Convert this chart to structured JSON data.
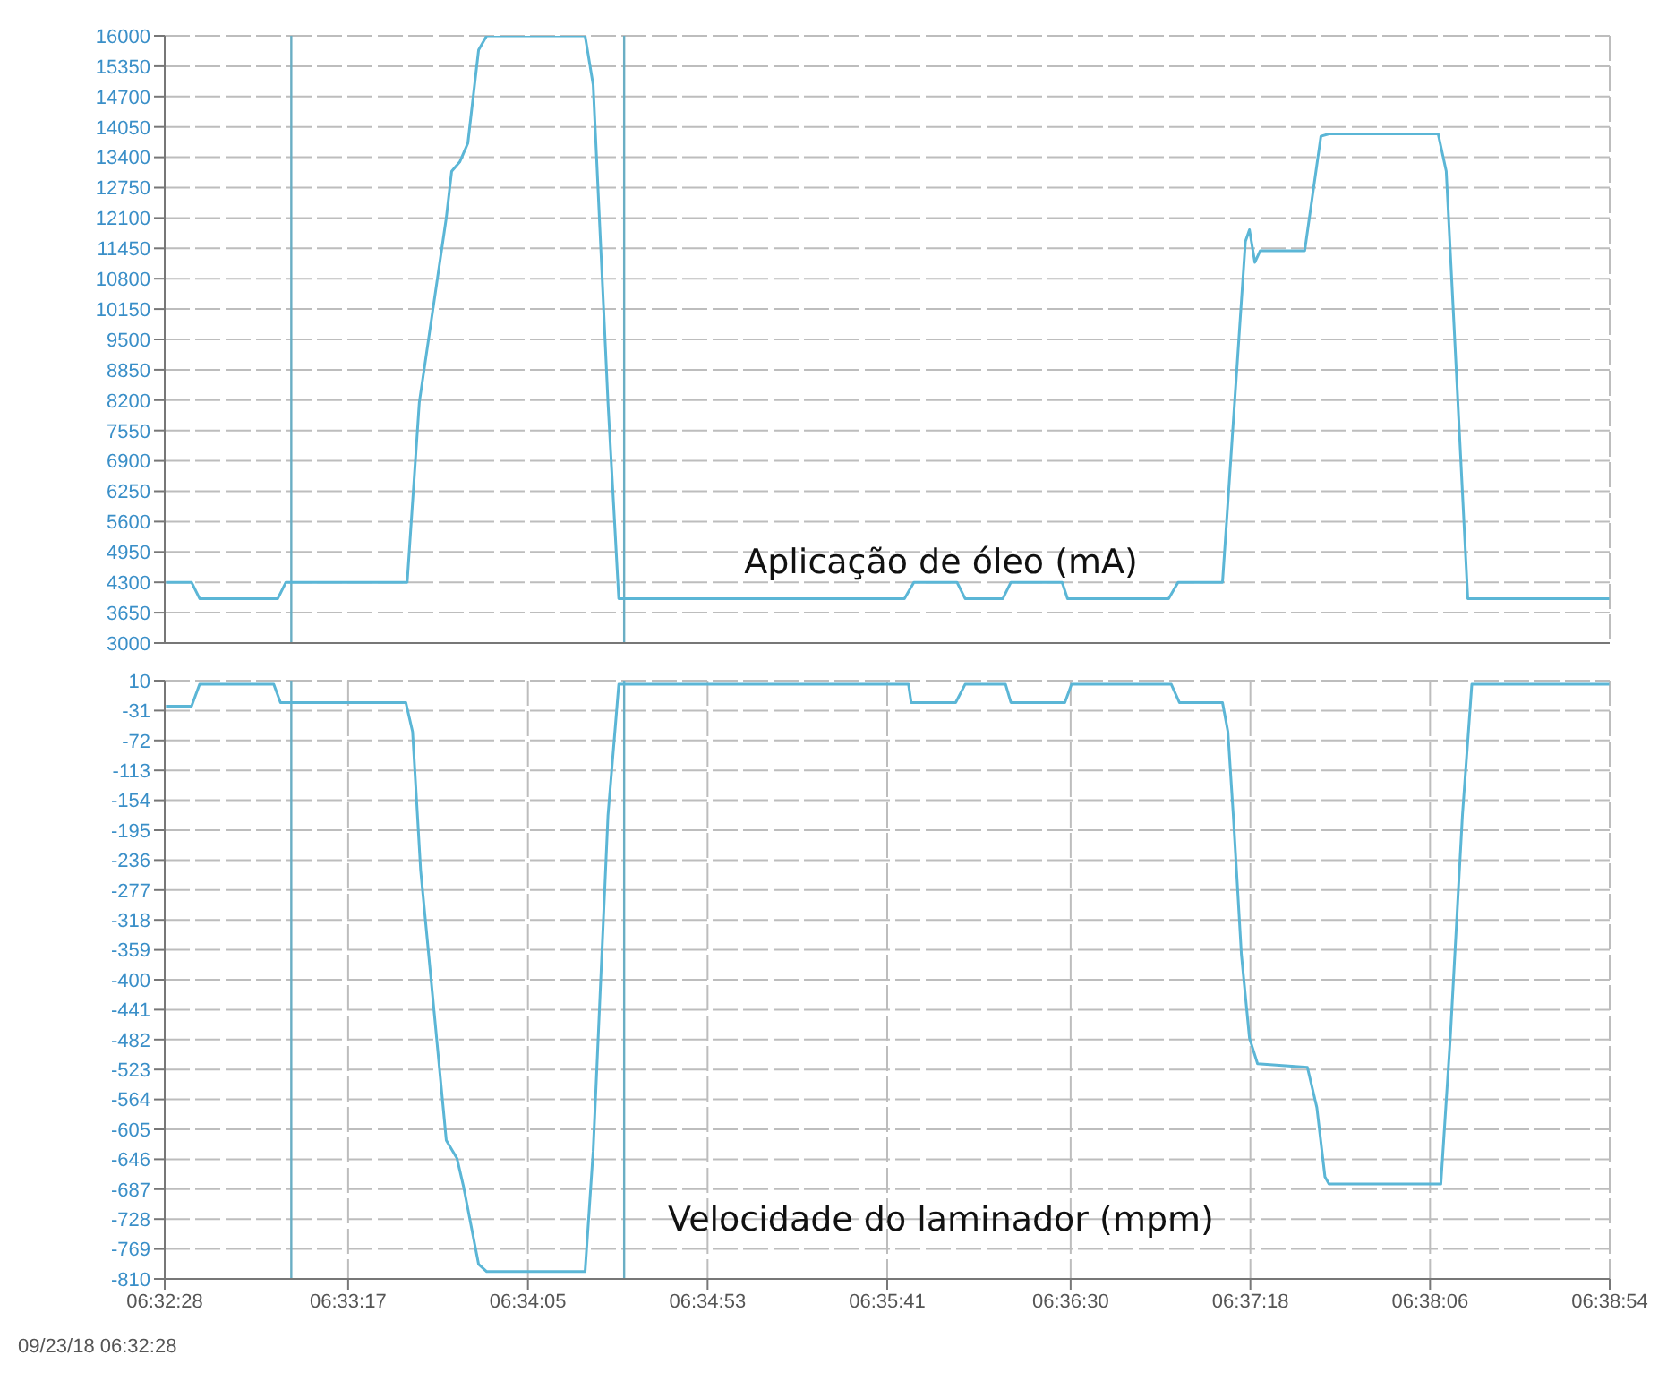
{
  "chart_data": [
    {
      "type": "line",
      "title": "Aplicação de óleo (mA)",
      "x": [
        6.5412,
        6.5431,
        6.5437,
        6.5495,
        6.5501,
        6.5591,
        6.56,
        6.562,
        6.5624,
        6.563,
        6.5636,
        6.5644,
        6.565,
        6.5723,
        6.5729,
        6.574,
        6.5748,
        6.596,
        6.5967,
        6.5999,
        6.6005,
        6.6033,
        6.6039,
        6.6077,
        6.6081,
        6.6156,
        6.6163,
        6.6196,
        6.6213,
        6.6216,
        6.622,
        6.6224,
        6.6257,
        6.6269,
        6.6275,
        6.6356,
        6.6362,
        6.6378,
        6.6483
      ],
      "series": [
        {
          "color": "#5bb6d6",
          "values": [
            4300,
            4300,
            3950,
            3950,
            4300,
            4300,
            8150,
            12100,
            13100,
            13300,
            13700,
            15700,
            16000,
            16000,
            14950,
            8150,
            3950,
            3950,
            4300,
            4300,
            3950,
            3950,
            4300,
            4300,
            3950,
            3950,
            4300,
            4300,
            11600,
            11850,
            11150,
            11400,
            11400,
            13850,
            13900,
            13900,
            13100,
            3950,
            3950
          ]
        }
      ],
      "xlim": [
        6.54111,
        6.64833
      ],
      "xticks": [
        {
          "value": 6.54111,
          "label": null
        },
        {
          "value": 6.55472,
          "label": null
        },
        {
          "value": 6.56806,
          "label": null
        },
        {
          "value": 6.58139,
          "label": null
        },
        {
          "value": 6.59472,
          "label": null
        },
        {
          "value": 6.60833,
          "label": null
        },
        {
          "value": 6.62167,
          "label": null
        },
        {
          "value": 6.635,
          "label": null
        },
        {
          "value": 6.64833,
          "label": null
        }
      ],
      "ylim": [
        3000,
        16000
      ],
      "yticks": [
        3000,
        3650,
        4300,
        4950,
        5600,
        6250,
        6900,
        7550,
        8200,
        8850,
        9500,
        10150,
        10800,
        11450,
        12100,
        12750,
        13400,
        14050,
        14700,
        15350,
        16000
      ],
      "tick_labels": "y",
      "grid": true,
      "marker": "none",
      "line_style": "solid",
      "ref_lines": [
        {
          "axis": "x",
          "value": 6.5505,
          "color": "#6aaec4"
        },
        {
          "axis": "x",
          "value": 6.5752,
          "color": "#6aaec4"
        }
      ]
    },
    {
      "type": "line",
      "title": "Velocidade do laminador (mpm)",
      "x": [
        6.5412,
        6.5431,
        6.5437,
        6.5492,
        6.5497,
        6.559,
        6.5595,
        6.5601,
        6.5609,
        6.562,
        6.5628,
        6.5633,
        6.5644,
        6.565,
        6.5723,
        6.5729,
        6.574,
        6.5748,
        6.5963,
        6.5965,
        6.5998,
        6.6005,
        6.6035,
        6.6039,
        6.6079,
        6.6084,
        6.6158,
        6.6164,
        6.6196,
        6.62,
        6.6204,
        6.621,
        6.6216,
        6.6222,
        6.6259,
        6.6266,
        6.6272,
        6.6275,
        6.6358,
        6.6365,
        6.6374,
        6.6381,
        6.6483
      ],
      "series": [
        {
          "color": "#5bb6d6",
          "values": [
            -25,
            -25,
            5,
            5,
            -20,
            -20,
            -60,
            -250,
            -405,
            -620,
            -645,
            -685,
            -790,
            -800,
            -800,
            -635,
            -175,
            5,
            5,
            -20,
            -20,
            5,
            5,
            -20,
            -20,
            5,
            5,
            -20,
            -20,
            -60,
            -175,
            -365,
            -480,
            -515,
            -520,
            -575,
            -670,
            -680,
            -680,
            -480,
            -175,
            5,
            5
          ]
        }
      ],
      "xlim": [
        6.54111,
        6.64833
      ],
      "xticks": [
        {
          "value": 6.54111,
          "label": "06:32:28"
        },
        {
          "value": 6.55472,
          "label": "06:33:17"
        },
        {
          "value": 6.56806,
          "label": "06:34:05"
        },
        {
          "value": 6.58139,
          "label": "06:34:53"
        },
        {
          "value": 6.59472,
          "label": "06:35:41"
        },
        {
          "value": 6.60833,
          "label": "06:36:30"
        },
        {
          "value": 6.62167,
          "label": "06:37:18"
        },
        {
          "value": 6.635,
          "label": "06:38:06"
        },
        {
          "value": 6.64833,
          "label": "06:38:54"
        }
      ],
      "ylim": [
        -810,
        10
      ],
      "yticks": [
        10,
        -31,
        -72,
        -113,
        -154,
        -195,
        -236,
        -277,
        -318,
        -359,
        -400,
        -441,
        -482,
        -523,
        -564,
        -605,
        -646,
        -687,
        -728,
        -769,
        -810
      ],
      "grid": true,
      "marker": "none",
      "line_style": "solid",
      "ref_lines": [
        {
          "axis": "x",
          "value": 6.5505,
          "color": "#6aaec4"
        },
        {
          "axis": "x",
          "value": 6.5752,
          "color": "#6aaec4"
        }
      ],
      "annotations": [
        "09/23/18 06:32:28"
      ]
    }
  ]
}
